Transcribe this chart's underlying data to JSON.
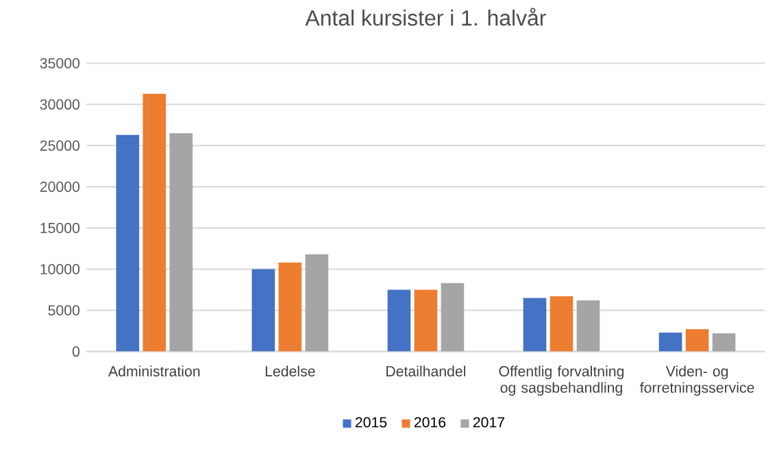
{
  "chart_data": {
    "type": "bar",
    "title": "Antal kursister i 1. halvår",
    "categories": [
      "Administration",
      "Ledelse",
      "Detailhandel",
      "Offentlig forvaltning og sagsbehandling",
      "Viden- og forretningsservice"
    ],
    "series": [
      {
        "name": "2015",
        "color": "#4472c4",
        "values": [
          26300,
          10000,
          7500,
          6500,
          2300
        ]
      },
      {
        "name": "2016",
        "color": "#ed7d31",
        "values": [
          31300,
          10800,
          7500,
          6700,
          2700
        ]
      },
      {
        "name": "2017",
        "color": "#a5a5a5",
        "values": [
          26500,
          11800,
          8300,
          6200,
          2200
        ]
      }
    ],
    "ylim": [
      0,
      35000
    ],
    "yticks": [
      0,
      5000,
      10000,
      15000,
      20000,
      25000,
      30000,
      35000
    ],
    "grid": "y",
    "legend": "bottom"
  }
}
